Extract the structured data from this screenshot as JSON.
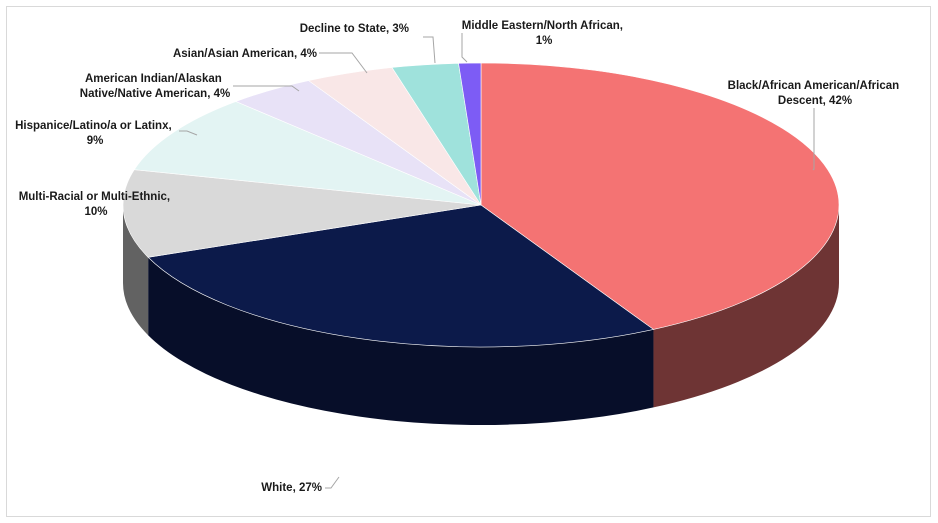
{
  "chart_data": {
    "type": "pie",
    "style": "3d",
    "title": "",
    "slices": [
      {
        "label": "Black/African American/African Descent",
        "value": 42,
        "display": "Black/African American/African Descent, 42%",
        "color": "#f47373"
      },
      {
        "label": "White",
        "value": 27,
        "display": "White, 27%",
        "color": "#0c1a4a"
      },
      {
        "label": "Multi-Racial or Multi-Ethnic",
        "value": 10,
        "display": "Multi-Racial or Multi-Ethnic, 10%",
        "color": "#d9d9d9"
      },
      {
        "label": "Hispanice/Latino/a or Latinx",
        "value": 9,
        "display": "Hispanice/Latino/a or Latinx, 9%",
        "color": "#e3f4f3"
      },
      {
        "label": "American Indian/Alaskan Native/Native American",
        "value": 4,
        "display": "American Indian/Alaskan Native/Native American, 4%",
        "color": "#e8e2f7"
      },
      {
        "label": "Asian/Asian American",
        "value": 4,
        "display": "Asian/Asian American, 4%",
        "color": "#f9e7e7"
      },
      {
        "label": "Decline to State",
        "value": 3,
        "display": "Decline to State, 3%",
        "color": "#9fe2dc"
      },
      {
        "label": "Middle Eastern/North African",
        "value": 1,
        "display": "Middle Eastern/North African, 1%",
        "color": "#7d5cf5"
      }
    ]
  }
}
